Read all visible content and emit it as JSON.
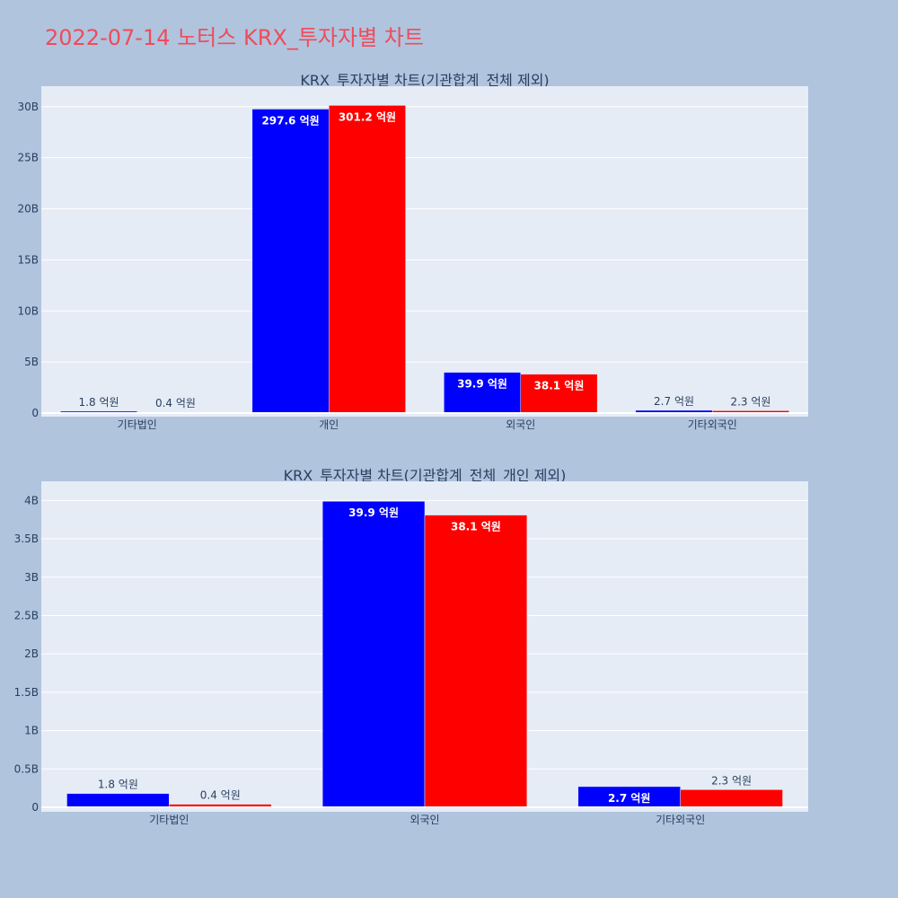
{
  "title": "2022-07-14 노터스 KRX_투자자별 차트",
  "chart_data": [
    {
      "type": "bar",
      "title": "KRX_투자자별 차트(기관합계_전체 제외)",
      "categories": [
        "기타법인",
        "개인",
        "외국인",
        "기타외국인"
      ],
      "series": [
        {
          "color": "#0000ff",
          "values": [
            180000000,
            29760000000,
            3990000000,
            270000000
          ],
          "labels": [
            "1.8 억원",
            "297.6 억원",
            "39.9 억원",
            "2.7 억원"
          ]
        },
        {
          "color": "#ff0000",
          "values": [
            40000000,
            30120000000,
            3810000000,
            230000000
          ],
          "labels": [
            "0.4 억원",
            "301.2 억원",
            "38.1 억원",
            "2.3 억원"
          ]
        }
      ],
      "ylim": [
        0,
        32000000000
      ],
      "yticks": [
        {
          "v": 0,
          "t": "0"
        },
        {
          "v": 5000000000,
          "t": "5B"
        },
        {
          "v": 10000000000,
          "t": "10B"
        },
        {
          "v": 15000000000,
          "t": "15B"
        },
        {
          "v": 20000000000,
          "t": "20B"
        },
        {
          "v": 25000000000,
          "t": "25B"
        },
        {
          "v": 30000000000,
          "t": "30B"
        }
      ],
      "grid": true,
      "background": "#e5ecf6"
    },
    {
      "type": "bar",
      "title": "KRX_투자자별 차트(기관합계_전체_개인 제외)",
      "categories": [
        "기타법인",
        "외국인",
        "기타외국인"
      ],
      "series": [
        {
          "color": "#0000ff",
          "values": [
            180000000,
            3990000000,
            270000000
          ],
          "labels": [
            "1.8 억원",
            "39.9 억원",
            "2.7 억원"
          ]
        },
        {
          "color": "#ff0000",
          "values": [
            40000000,
            3810000000,
            230000000
          ],
          "labels": [
            "0.4 억원",
            "38.1 억원",
            "2.3 억원"
          ]
        }
      ],
      "ylim": [
        0,
        4250000000
      ],
      "yticks": [
        {
          "v": 0,
          "t": "0"
        },
        {
          "v": 500000000,
          "t": "0.5B"
        },
        {
          "v": 1000000000,
          "t": "1B"
        },
        {
          "v": 1500000000,
          "t": "1.5B"
        },
        {
          "v": 2000000000,
          "t": "2B"
        },
        {
          "v": 2500000000,
          "t": "2.5B"
        },
        {
          "v": 3000000000,
          "t": "3B"
        },
        {
          "v": 3500000000,
          "t": "3.5B"
        },
        {
          "v": 4000000000,
          "t": "4B"
        }
      ],
      "grid": true,
      "background": "#e5ecf6"
    }
  ]
}
